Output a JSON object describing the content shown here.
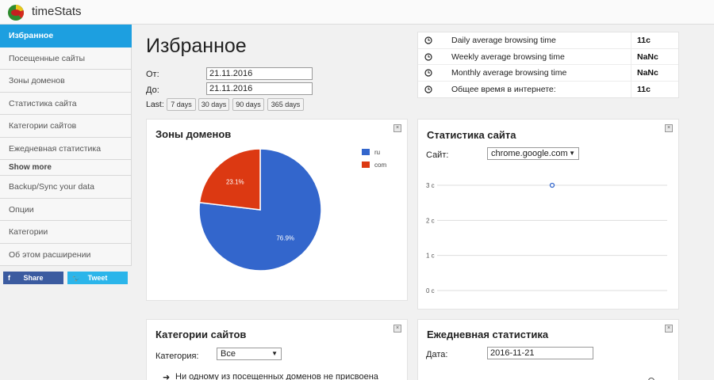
{
  "app": {
    "title": "timeStats",
    "logo_icon": "timestats-logo-icon"
  },
  "sidebar": {
    "items": [
      {
        "label": "Избранное",
        "active": true
      },
      {
        "label": "Посещенные сайты"
      },
      {
        "label": "Зоны доменов"
      },
      {
        "label": "Статистика сайта"
      },
      {
        "label": "Категории сайтов"
      },
      {
        "label": "Ежедневная статистика"
      }
    ],
    "show_more": "Show more",
    "items_more": [
      {
        "label": "Backup/Sync your data"
      },
      {
        "label": "Опции"
      },
      {
        "label": "Категории"
      },
      {
        "label": "Об этом расширении"
      }
    ],
    "share_label": "Share",
    "share_icon": "f",
    "tweet_label": "Tweet",
    "tweet_icon": "🐦"
  },
  "main": {
    "title": "Избранное",
    "from_label": "От:",
    "from_value": "21.11.2016",
    "to_label": "До:",
    "to_value": "21.11.2016",
    "last_label": "Last:",
    "ranges": [
      "7 days",
      "30 days",
      "90 days",
      "365 days"
    ]
  },
  "stats": [
    {
      "label": "Daily average browsing time",
      "value": "11с"
    },
    {
      "label": "Weekly average browsing time",
      "value": "NaNс"
    },
    {
      "label": "Monthly average browsing time",
      "value": "NaNс"
    },
    {
      "label": "Общее время в интернете:",
      "value": "11с"
    }
  ],
  "domain_zones": {
    "title": "Зоны доменов",
    "close": "×",
    "chart_data": {
      "type": "pie",
      "title": "",
      "slices": [
        {
          "name": "ru",
          "value": 76.9,
          "label": "76.9%",
          "color": "#3366cc"
        },
        {
          "name": "com",
          "value": 23.1,
          "label": "23.1%",
          "color": "#dc3912"
        }
      ],
      "legend_position": "right"
    }
  },
  "site_stats": {
    "title": "Статистика сайта",
    "close": "×",
    "site_label": "Сайт:",
    "site_value": "chrome.google.com",
    "chart_data": {
      "type": "line",
      "title": "",
      "y_ticks": [
        "0 с",
        "1 с",
        "2 с",
        "3 с"
      ],
      "ylim": [
        0,
        3
      ],
      "grid": true,
      "series": [
        {
          "values": [
            3
          ]
        }
      ]
    }
  },
  "categories": {
    "title": "Категории сайтов",
    "close": "×",
    "category_label": "Категория:",
    "category_value": "Все",
    "note": "Ни одному из посещенных доменов не присвоена"
  },
  "daily": {
    "title": "Ежедневная статистика",
    "close": "×",
    "date_label": "Дата:",
    "date_value": "2016-11-21"
  },
  "colors": {
    "accent": "#1d9fe0",
    "facebook": "#3b5ba0",
    "twitter": "#2bb5ea"
  }
}
